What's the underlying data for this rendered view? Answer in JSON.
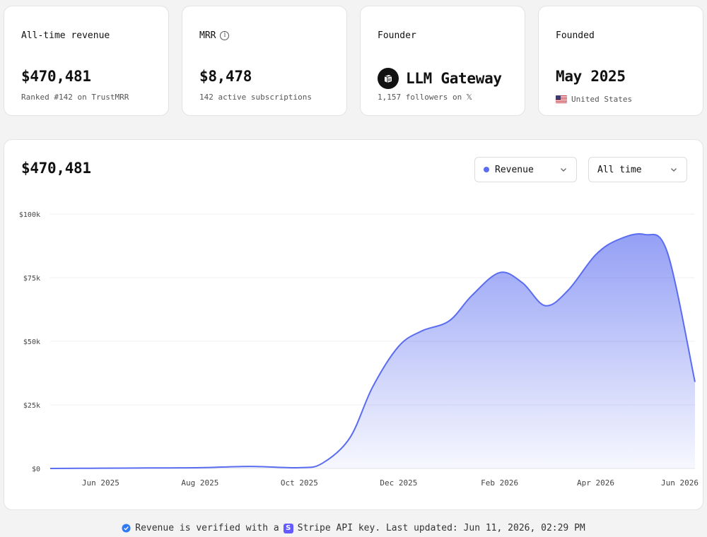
{
  "stats": [
    {
      "title": "All-time revenue",
      "value": "$470,481",
      "sub": "Ranked #142 on TrustMRR"
    },
    {
      "title": "MRR",
      "value": "$8,478",
      "sub": "142 active subscriptions",
      "icon": "info-icon"
    },
    {
      "title": "Founder",
      "value": "LLM Gateway",
      "sub": "1,157 followers on",
      "sub_icon": "𝕏"
    },
    {
      "title": "Founded",
      "value": "May 2025",
      "sub": "United States",
      "icon": "us-flag-icon"
    }
  ],
  "chart": {
    "total": "$470,481",
    "metric_select": "Revenue",
    "range_select": "All time",
    "accent_color": "#5a6cf0"
  },
  "chart_data": {
    "type": "area",
    "xlabel": "",
    "ylabel": "",
    "ylim": [
      0,
      100000
    ],
    "y_ticks": [
      "$0",
      "$25k",
      "$50k",
      "$75k",
      "$100k"
    ],
    "x_ticks": [
      "Jun 2025",
      "Aug 2025",
      "Oct 2025",
      "Dec 2025",
      "Feb 2026",
      "Apr 2026",
      "Jun 2026"
    ],
    "grid": true,
    "series": [
      {
        "x": [
          "2025-05-01",
          "2025-06-01",
          "2025-07-01",
          "2025-08-01",
          "2025-09-01",
          "2025-10-01",
          "2025-10-15",
          "2025-11-01",
          "2025-11-15",
          "2025-12-01",
          "2025-12-15",
          "2026-01-01",
          "2026-01-15",
          "2026-02-01",
          "2026-02-15",
          "2026-03-01",
          "2026-03-15",
          "2026-04-01",
          "2026-04-15",
          "2026-05-01",
          "2026-05-15",
          "2026-06-01"
        ],
        "values": [
          0,
          100,
          200,
          300,
          800,
          300,
          2000,
          12000,
          32000,
          48000,
          54000,
          58000,
          68000,
          77000,
          73000,
          64000,
          70000,
          84000,
          90000,
          92000,
          85000,
          34000
        ]
      }
    ]
  },
  "footer": {
    "text_before": "Revenue is verified with a",
    "badge": "S",
    "text_after": "Stripe API key. Last updated: Jun 11, 2026, 02:29 PM"
  }
}
